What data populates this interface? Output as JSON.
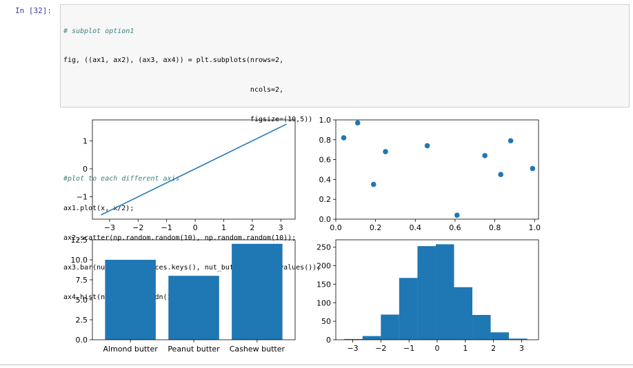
{
  "cell": {
    "prompt": "In [32]:",
    "code_lines": [
      "# subplot option1",
      "fig, ((ax1, ax2), (ax3, ax4)) = plt.subplots(nrows=2,",
      "                                             ncols=2,",
      "                                             figsize=(10,5))",
      "",
      "#plot to each different axis",
      "ax1.plot(x, x/2);",
      "ax2.scatter(np.random.random(10), np.random.random(10));",
      "ax3.bar(nut_butter_prices.keys(), nut_butter_prices.values());",
      "ax4.hist(np.random.randn(1000));"
    ]
  },
  "colors": {
    "series": "#1f77b4",
    "prompt": "#303f9f",
    "comment": "#408080",
    "cell_bg": "#f7f7f7"
  },
  "chart_data": [
    {
      "type": "line",
      "x": [
        -3.3,
        3.2
      ],
      "y": [
        -1.65,
        1.6
      ],
      "xlim": [
        -3.6,
        3.5
      ],
      "ylim": [
        -1.8,
        1.75
      ],
      "xticks": [
        -3,
        -2,
        -1,
        0,
        1,
        2,
        3
      ],
      "xtick_labels": [
        "−3",
        "−2",
        "−1",
        "0",
        "1",
        "2",
        "3"
      ],
      "yticks": [
        -1,
        0,
        1
      ],
      "ytick_labels": [
        "−1",
        "0",
        "1"
      ],
      "grid": false
    },
    {
      "type": "scatter",
      "x": [
        0.04,
        0.11,
        0.19,
        0.25,
        0.46,
        0.61,
        0.75,
        0.83,
        0.88,
        0.99
      ],
      "y": [
        0.82,
        0.97,
        0.35,
        0.68,
        0.74,
        0.04,
        0.64,
        0.45,
        0.79,
        0.51
      ],
      "xlim": [
        0.0,
        1.02
      ],
      "ylim": [
        0.0,
        1.0
      ],
      "xticks": [
        0.0,
        0.2,
        0.4,
        0.6,
        0.8,
        1.0
      ],
      "xtick_labels": [
        "0.0",
        "0.2",
        "0.4",
        "0.6",
        "0.8",
        "1.0"
      ],
      "yticks": [
        0.0,
        0.2,
        0.4,
        0.6,
        0.8,
        1.0
      ],
      "ytick_labels": [
        "0.0",
        "0.2",
        "0.4",
        "0.6",
        "0.8",
        "1.0"
      ],
      "grid": false
    },
    {
      "type": "bar",
      "categories": [
        "Almond butter",
        "Peanut butter",
        "Cashew butter"
      ],
      "values": [
        10,
        8,
        12
      ],
      "ylim": [
        0,
        12.5
      ],
      "yticks": [
        0.0,
        2.5,
        5.0,
        7.5,
        10.0,
        12.5
      ],
      "ytick_labels": [
        "0.0",
        "2.5",
        "5.0",
        "7.5",
        "10.0",
        "12.5"
      ],
      "grid": false
    },
    {
      "type": "bar",
      "histogram": true,
      "bin_edges": [
        -3.3,
        -2.65,
        -2.0,
        -1.35,
        -0.7,
        -0.05,
        0.6,
        1.25,
        1.9,
        2.55,
        3.2
      ],
      "values": [
        2,
        10,
        68,
        167,
        253,
        258,
        142,
        67,
        20,
        3
      ],
      "xlim": [
        -3.6,
        3.6
      ],
      "ylim": [
        0,
        270
      ],
      "xticks": [
        -3,
        -2,
        -1,
        0,
        1,
        2,
        3
      ],
      "xtick_labels": [
        "−3",
        "−2",
        "−1",
        "0",
        "1",
        "2",
        "3"
      ],
      "yticks": [
        0,
        50,
        100,
        150,
        200,
        250
      ],
      "ytick_labels": [
        "0",
        "50",
        "100",
        "150",
        "200",
        "250"
      ],
      "grid": false
    }
  ]
}
